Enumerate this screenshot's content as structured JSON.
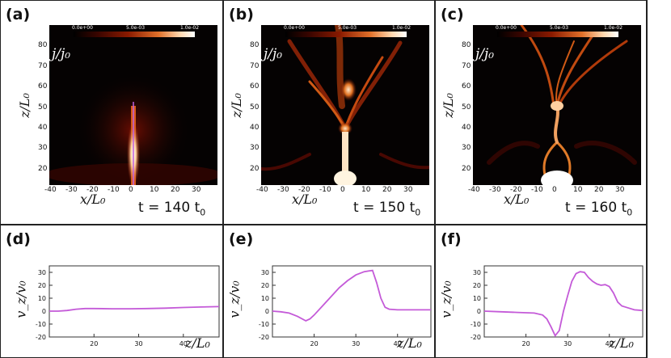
{
  "figure": {
    "colorbar": {
      "min_label": "0.0e+00",
      "mid_label": "5.0e-03",
      "max_label": "1.0e-02"
    },
    "colormap_label": "j/j₀",
    "heatmap_axes": {
      "xlabel": "x/L₀",
      "ylabel": "z/L₀",
      "xticks": [
        "-40",
        "-30",
        "-20",
        "-10",
        "0",
        "10",
        "20",
        "30"
      ],
      "yticks": [
        "20",
        "30",
        "40",
        "50",
        "60",
        "70",
        "80"
      ]
    },
    "velocity_axes": {
      "xlabel": "z/L₀",
      "ylabel": "v_z/v₀",
      "xticks": [
        "20",
        "30",
        "40"
      ],
      "yticks": [
        "30",
        "20",
        "10",
        "0",
        "-10",
        "-20"
      ]
    },
    "top_panels": [
      {
        "label": "(a)",
        "time_value": "t = 140 t",
        "time_unit_sub": "0"
      },
      {
        "label": "(b)",
        "time_value": "t = 150 t",
        "time_unit_sub": "0"
      },
      {
        "label": "(c)",
        "time_value": "t = 160 t",
        "time_unit_sub": "0"
      }
    ],
    "bottom_panels": [
      {
        "label": "(d)"
      },
      {
        "label": "(e)"
      },
      {
        "label": "(f)"
      }
    ]
  },
  "chart_data": [
    {
      "type": "line",
      "panel": "(d)",
      "xlabel": "z/L0",
      "ylabel": "v_z/v0",
      "xlim": [
        10,
        48
      ],
      "ylim": [
        -20,
        35
      ],
      "x": [
        10,
        12,
        14,
        16,
        18,
        20,
        24,
        28,
        32,
        36,
        40,
        44,
        48
      ],
      "values": [
        0,
        0,
        0.5,
        1.5,
        2,
        2,
        1.8,
        1.8,
        2,
        2.3,
        2.8,
        3.2,
        3.5
      ]
    },
    {
      "type": "line",
      "panel": "(e)",
      "xlabel": "z/L0",
      "ylabel": "v_z/v0",
      "xlim": [
        10,
        48
      ],
      "ylim": [
        -20,
        35
      ],
      "x": [
        10,
        12,
        14,
        16,
        18,
        19,
        20,
        22,
        24,
        26,
        28,
        30,
        32,
        33,
        34,
        35,
        36,
        37,
        38,
        40,
        44,
        48
      ],
      "values": [
        0,
        -0.5,
        -1.5,
        -4,
        -7.5,
        -6,
        -3,
        4,
        11,
        18,
        23.5,
        28,
        30.5,
        31,
        31.5,
        22,
        10,
        3,
        1.5,
        1,
        1,
        1
      ]
    },
    {
      "type": "line",
      "panel": "(f)",
      "xlabel": "z/L0",
      "ylabel": "v_z/v0",
      "xlim": [
        10,
        48
      ],
      "ylim": [
        -20,
        35
      ],
      "x": [
        10,
        14,
        18,
        22,
        24,
        25,
        26,
        27,
        28,
        29,
        30,
        31,
        32,
        33,
        34,
        35,
        36,
        37,
        38,
        39,
        40,
        41,
        42,
        43,
        44,
        46,
        48
      ],
      "values": [
        0,
        -0.5,
        -1,
        -1.5,
        -3,
        -6,
        -12,
        -19,
        -15,
        0,
        12,
        23,
        29,
        30.5,
        30,
        26,
        23,
        21,
        20,
        20.5,
        19,
        14,
        7,
        4,
        3,
        1,
        0.5
      ]
    }
  ]
}
